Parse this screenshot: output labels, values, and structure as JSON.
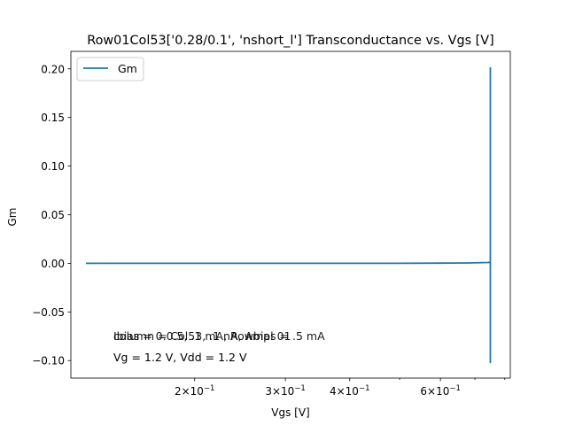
{
  "chart_data": {
    "type": "line",
    "title": "Row01Col53['0.28/0.1', 'nshort_l'] Transconductance vs. Vgs [V]",
    "xlabel": "Vgs [V]",
    "ylabel": "Gm",
    "x_scale": "log",
    "xlim": [
      0.115,
      0.82
    ],
    "ylim": [
      -0.118,
      0.218
    ],
    "legend": {
      "position": "top-left",
      "entries": [
        "Gm"
      ]
    },
    "grid": false,
    "colors": {
      "series": "#1f77b4"
    },
    "x_ticks": [
      {
        "value": 0.2,
        "base": "2×10",
        "exp": "−1"
      },
      {
        "value": 0.3,
        "base": "3×10",
        "exp": "−1"
      },
      {
        "value": 0.4,
        "base": "4×10",
        "exp": "−1"
      },
      {
        "value": 0.6,
        "base": "6×10",
        "exp": "−1"
      }
    ],
    "x_minor_ticks": [
      0.5,
      0.7,
      0.8
    ],
    "y_ticks": [
      {
        "value": -0.1,
        "label": "−0.10"
      },
      {
        "value": -0.05,
        "label": "−0.05"
      },
      {
        "value": 0.0,
        "label": "0.00"
      },
      {
        "value": 0.05,
        "label": "0.05"
      },
      {
        "value": 0.1,
        "label": "0.10"
      },
      {
        "value": 0.15,
        "label": "0.15"
      },
      {
        "value": 0.2,
        "label": "0.20"
      }
    ],
    "series": [
      {
        "name": "Gm",
        "x": [
          0.123,
          0.2,
          0.3,
          0.4,
          0.5,
          0.6,
          0.68,
          0.74,
          0.75,
          0.75,
          0.75,
          0.75
        ],
        "y": [
          0.0,
          0.0,
          0.0,
          0.0,
          0.0,
          0.0002,
          0.0004,
          0.0008,
          0.001,
          0.201,
          -0.102,
          0.001
        ]
      }
    ],
    "annotations": [
      {
        "id": "line1a",
        "text": "Ibias = 0.0.5, .1 mA, Rowbias = .5 mA"
      },
      {
        "id": "line1b",
        "text": "column = Col53, .1 nA, Ampl 01"
      },
      {
        "id": "line2",
        "text": "Vg = 1.2 V, Vdd = 1.2 V"
      }
    ]
  }
}
